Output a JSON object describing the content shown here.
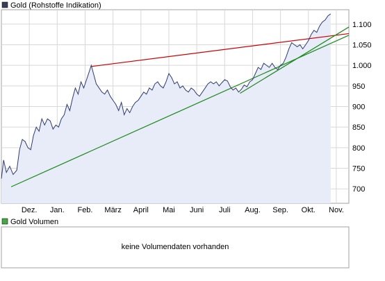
{
  "chart_data": {
    "type": "area",
    "title": "Gold (Rohstoffe Indikation)",
    "title_marker_color": "#3a3f55",
    "x_labels": [
      "Dez.",
      "Jan.",
      "Feb.",
      "März",
      "April",
      "Mai",
      "Juni",
      "Juli",
      "Aug.",
      "Sep.",
      "Okt.",
      "Nov."
    ],
    "x_label_months": [
      1,
      2,
      3,
      4,
      5,
      6,
      7,
      8,
      9,
      10,
      11,
      12
    ],
    "x_range_months": [
      0,
      12.45
    ],
    "y_ticks": [
      700,
      750,
      800,
      850,
      900,
      950,
      1000,
      1050,
      1100
    ],
    "y_tick_labels": [
      "700",
      "750",
      "800",
      "850",
      "900",
      "950",
      "1.000",
      "1.050",
      "1.100"
    ],
    "ylim": [
      665,
      1135
    ],
    "grid": true,
    "series": [
      {
        "line_color": "#2f3a6e",
        "fill_color": "#e8ecf8",
        "points": [
          [
            0.0,
            725
          ],
          [
            0.08,
            770
          ],
          [
            0.18,
            740
          ],
          [
            0.3,
            755
          ],
          [
            0.42,
            735
          ],
          [
            0.55,
            745
          ],
          [
            0.65,
            795
          ],
          [
            0.75,
            820
          ],
          [
            0.85,
            815
          ],
          [
            0.95,
            800
          ],
          [
            1.05,
            795
          ],
          [
            1.15,
            830
          ],
          [
            1.25,
            850
          ],
          [
            1.35,
            840
          ],
          [
            1.45,
            870
          ],
          [
            1.55,
            855
          ],
          [
            1.65,
            870
          ],
          [
            1.75,
            865
          ],
          [
            1.85,
            845
          ],
          [
            1.95,
            855
          ],
          [
            2.05,
            850
          ],
          [
            2.15,
            870
          ],
          [
            2.25,
            880
          ],
          [
            2.35,
            905
          ],
          [
            2.45,
            890
          ],
          [
            2.55,
            920
          ],
          [
            2.65,
            945
          ],
          [
            2.75,
            930
          ],
          [
            2.85,
            960
          ],
          [
            2.95,
            945
          ],
          [
            3.05,
            965
          ],
          [
            3.15,
            985
          ],
          [
            3.22,
            1000
          ],
          [
            3.3,
            980
          ],
          [
            3.4,
            955
          ],
          [
            3.5,
            945
          ],
          [
            3.6,
            935
          ],
          [
            3.7,
            930
          ],
          [
            3.8,
            940
          ],
          [
            3.9,
            925
          ],
          [
            4.0,
            915
          ],
          [
            4.1,
            905
          ],
          [
            4.2,
            890
          ],
          [
            4.3,
            910
          ],
          [
            4.4,
            880
          ],
          [
            4.5,
            895
          ],
          [
            4.6,
            885
          ],
          [
            4.7,
            900
          ],
          [
            4.8,
            910
          ],
          [
            4.9,
            915
          ],
          [
            5.0,
            925
          ],
          [
            5.1,
            935
          ],
          [
            5.2,
            930
          ],
          [
            5.3,
            945
          ],
          [
            5.4,
            940
          ],
          [
            5.5,
            955
          ],
          [
            5.6,
            960
          ],
          [
            5.7,
            950
          ],
          [
            5.8,
            945
          ],
          [
            5.9,
            960
          ],
          [
            6.0,
            980
          ],
          [
            6.1,
            970
          ],
          [
            6.2,
            955
          ],
          [
            6.3,
            960
          ],
          [
            6.4,
            945
          ],
          [
            6.5,
            950
          ],
          [
            6.6,
            940
          ],
          [
            6.7,
            935
          ],
          [
            6.8,
            945
          ],
          [
            6.9,
            940
          ],
          [
            7.0,
            930
          ],
          [
            7.1,
            925
          ],
          [
            7.2,
            935
          ],
          [
            7.3,
            945
          ],
          [
            7.4,
            955
          ],
          [
            7.5,
            960
          ],
          [
            7.6,
            955
          ],
          [
            7.7,
            960
          ],
          [
            7.8,
            950
          ],
          [
            7.9,
            958
          ],
          [
            8.0,
            965
          ],
          [
            8.1,
            962
          ],
          [
            8.2,
            948
          ],
          [
            8.3,
            940
          ],
          [
            8.4,
            945
          ],
          [
            8.5,
            935
          ],
          [
            8.6,
            942
          ],
          [
            8.7,
            952
          ],
          [
            8.8,
            948
          ],
          [
            8.9,
            960
          ],
          [
            9.0,
            965
          ],
          [
            9.1,
            980
          ],
          [
            9.2,
            995
          ],
          [
            9.3,
            990
          ],
          [
            9.4,
            1005
          ],
          [
            9.5,
            1000
          ],
          [
            9.6,
            995
          ],
          [
            9.7,
            1005
          ],
          [
            9.8,
            995
          ],
          [
            9.9,
            990
          ],
          [
            10.0,
            1000
          ],
          [
            10.1,
            1005
          ],
          [
            10.2,
            1020
          ],
          [
            10.3,
            1040
          ],
          [
            10.4,
            1055
          ],
          [
            10.5,
            1050
          ],
          [
            10.6,
            1045
          ],
          [
            10.7,
            1050
          ],
          [
            10.8,
            1040
          ],
          [
            10.9,
            1050
          ],
          [
            11.0,
            1060
          ],
          [
            11.1,
            1075
          ],
          [
            11.2,
            1085
          ],
          [
            11.3,
            1080
          ],
          [
            11.4,
            1095
          ],
          [
            11.5,
            1105
          ],
          [
            11.6,
            1110
          ],
          [
            11.7,
            1120
          ],
          [
            11.8,
            1125
          ]
        ]
      }
    ],
    "trend_lines": [
      {
        "color": "#cc0000",
        "from": [
          3.2,
          997
        ],
        "to": [
          12.45,
          1077
        ]
      },
      {
        "color": "#1a8a1a",
        "from": [
          0.35,
          705
        ],
        "to": [
          12.45,
          1073
        ]
      },
      {
        "color": "#1a8a1a",
        "from": [
          8.55,
          932
        ],
        "to": [
          12.45,
          1093
        ]
      }
    ]
  },
  "volume_panel": {
    "title": "Gold Volumen",
    "marker_color": "#44aa44",
    "message": "keine Volumendaten vorhanden"
  }
}
